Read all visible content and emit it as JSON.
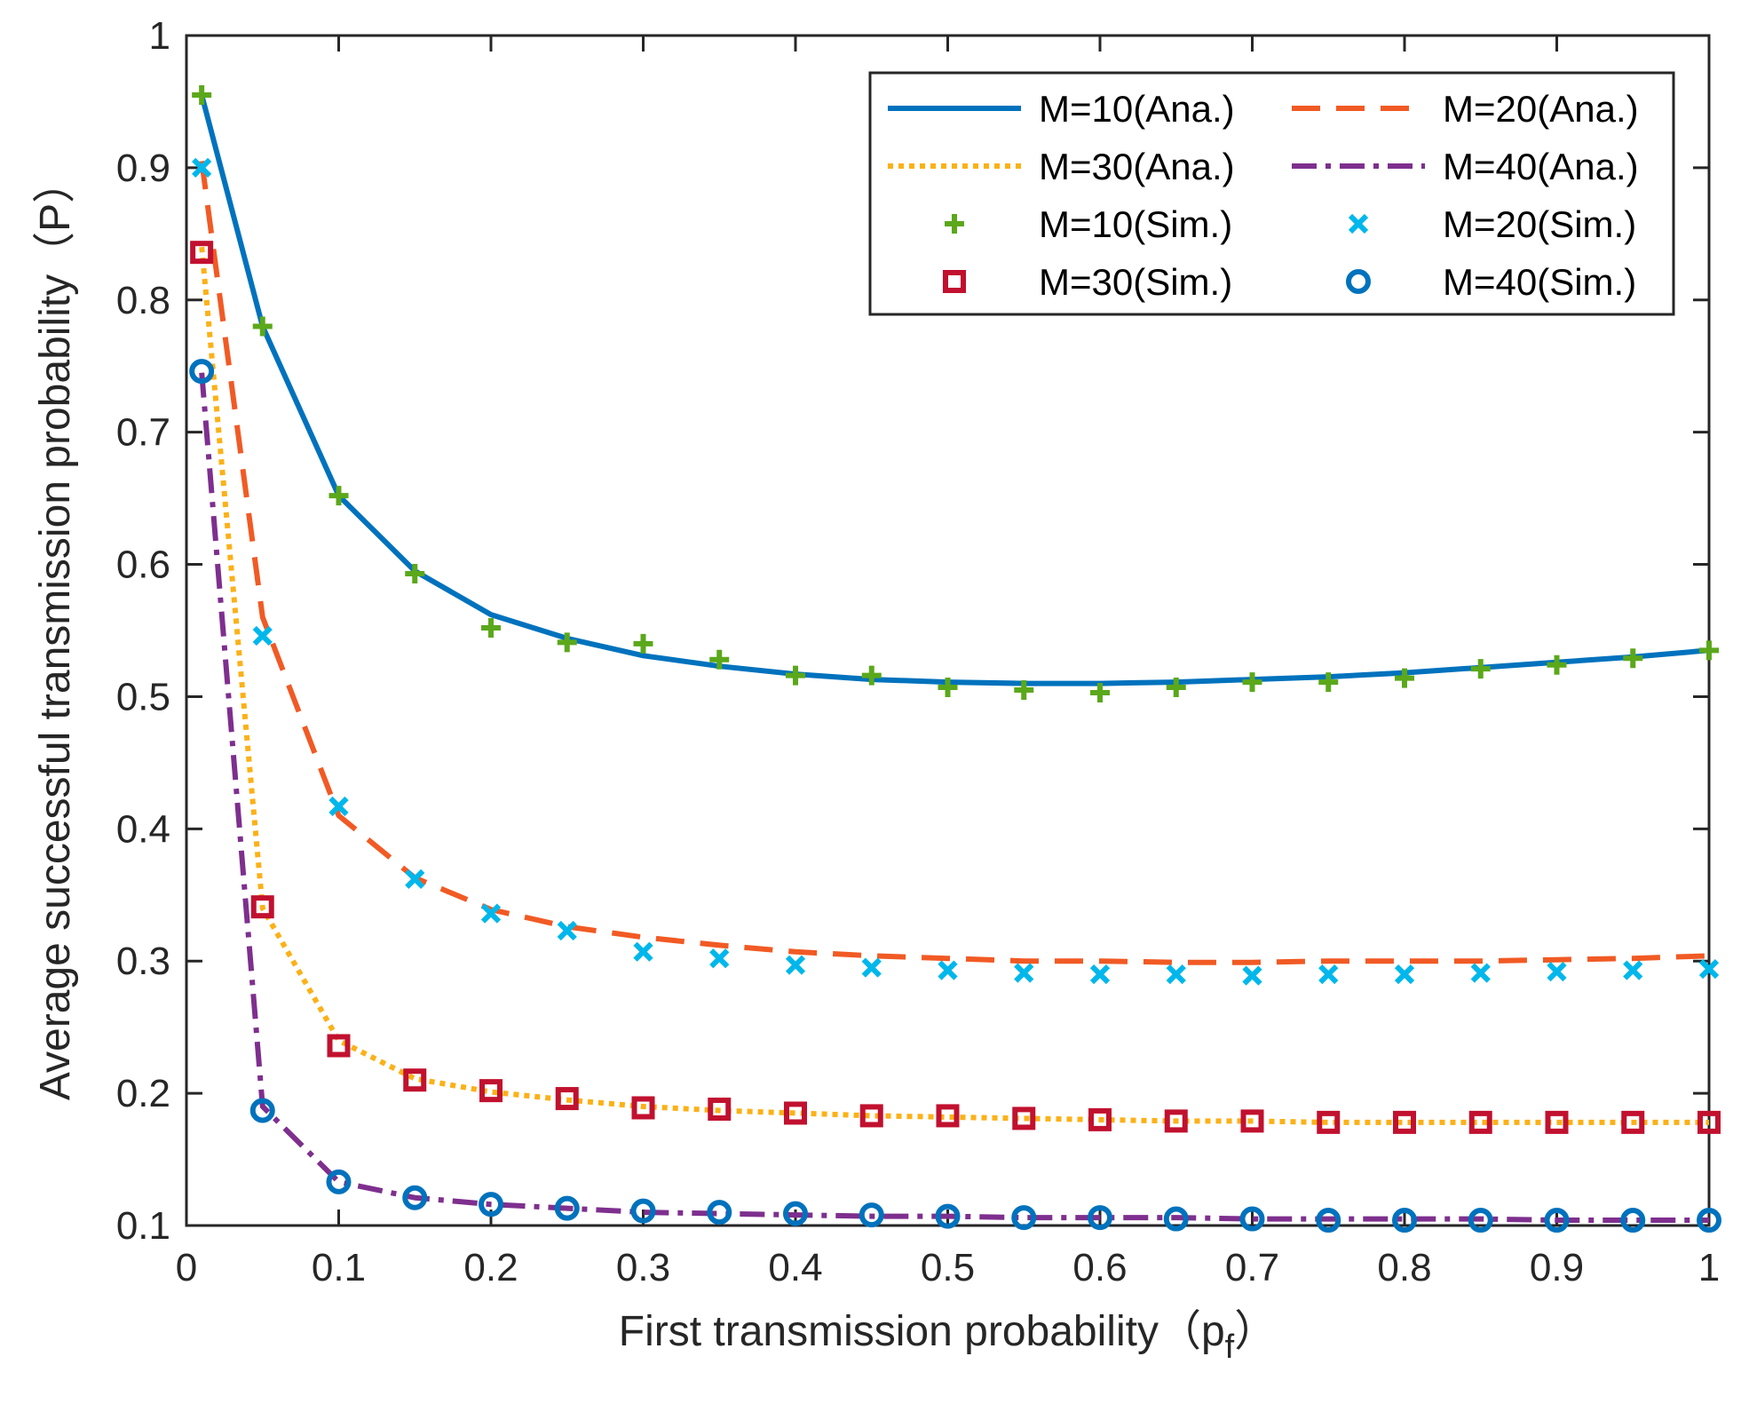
{
  "chart_data": {
    "type": "line",
    "xlabel": "First transmission probability（p_f）",
    "xlabel_parts": {
      "main": "First transmission probability（p",
      "subscript": "f",
      "close": "）"
    },
    "ylabel": "Average successful transmission probability（P）",
    "xlim": [
      0,
      1
    ],
    "ylim": [
      0.1,
      1
    ],
    "xticks": [
      0,
      0.1,
      0.2,
      0.3,
      0.4,
      0.5,
      0.6,
      0.7,
      0.8,
      0.9,
      1
    ],
    "xtick_labels": [
      "0",
      "0.1",
      "0.2",
      "0.3",
      "0.4",
      "0.5",
      "0.6",
      "0.7",
      "0.8",
      "0.9",
      "1"
    ],
    "yticks": [
      0.1,
      0.2,
      0.3,
      0.4,
      0.5,
      0.6,
      0.7,
      0.8,
      0.9,
      1
    ],
    "ytick_labels": [
      "0.1",
      "0.2",
      "0.3",
      "0.4",
      "0.5",
      "0.6",
      "0.7",
      "0.8",
      "0.9",
      "1"
    ],
    "grid": false,
    "legend_position": "top-right",
    "x": [
      0.01,
      0.05,
      0.1,
      0.15,
      0.2,
      0.25,
      0.3,
      0.35,
      0.4,
      0.45,
      0.5,
      0.55,
      0.6,
      0.65,
      0.7,
      0.75,
      0.8,
      0.85,
      0.9,
      0.95,
      1.0
    ],
    "series": [
      {
        "name": "M=10(Ana.)",
        "style": "line",
        "dash": "solid",
        "color": "#0072BD",
        "values": [
          0.955,
          0.78,
          0.652,
          0.595,
          0.562,
          0.544,
          0.531,
          0.523,
          0.517,
          0.513,
          0.511,
          0.51,
          0.51,
          0.511,
          0.513,
          0.515,
          0.518,
          0.522,
          0.526,
          0.53,
          0.535
        ]
      },
      {
        "name": "M=20(Ana.)",
        "style": "line",
        "dash": "dashed",
        "color": "#F15A24",
        "values": [
          0.905,
          0.56,
          0.41,
          0.363,
          0.339,
          0.326,
          0.318,
          0.312,
          0.307,
          0.304,
          0.302,
          0.3,
          0.3,
          0.299,
          0.299,
          0.3,
          0.3,
          0.3,
          0.301,
          0.302,
          0.304
        ]
      },
      {
        "name": "M=30(Ana.)",
        "style": "line",
        "dash": "dotted",
        "color": "#FBB117",
        "values": [
          0.84,
          0.34,
          0.24,
          0.211,
          0.201,
          0.195,
          0.19,
          0.187,
          0.185,
          0.183,
          0.182,
          0.181,
          0.18,
          0.179,
          0.179,
          0.178,
          0.178,
          0.178,
          0.178,
          0.178,
          0.178
        ]
      },
      {
        "name": "M=40(Ana.)",
        "style": "line",
        "dash": "dashdot",
        "color": "#7E2F8E",
        "values": [
          0.745,
          0.19,
          0.133,
          0.121,
          0.116,
          0.113,
          0.11,
          0.109,
          0.108,
          0.107,
          0.107,
          0.106,
          0.106,
          0.106,
          0.105,
          0.105,
          0.105,
          0.105,
          0.104,
          0.104,
          0.104
        ]
      },
      {
        "name": "M=10(Sim.)",
        "style": "marker",
        "marker": "plus",
        "color": "#5BA81B",
        "values": [
          0.955,
          0.78,
          0.652,
          0.593,
          0.552,
          0.541,
          0.54,
          0.528,
          0.516,
          0.516,
          0.507,
          0.505,
          0.503,
          0.507,
          0.511,
          0.511,
          0.514,
          0.521,
          0.524,
          0.529,
          0.535
        ]
      },
      {
        "name": "M=20(Sim.)",
        "style": "marker",
        "marker": "cross",
        "color": "#00B7EB",
        "values": [
          0.9,
          0.546,
          0.417,
          0.362,
          0.336,
          0.323,
          0.307,
          0.302,
          0.297,
          0.295,
          0.293,
          0.291,
          0.29,
          0.29,
          0.289,
          0.29,
          0.29,
          0.291,
          0.292,
          0.293,
          0.294
        ]
      },
      {
        "name": "M=30(Sim.)",
        "style": "marker",
        "marker": "square",
        "color": "#C1112F",
        "values": [
          0.836,
          0.341,
          0.236,
          0.21,
          0.202,
          0.196,
          0.189,
          0.188,
          0.185,
          0.183,
          0.183,
          0.181,
          0.18,
          0.179,
          0.179,
          0.178,
          0.178,
          0.178,
          0.178,
          0.178,
          0.178
        ]
      },
      {
        "name": "M=40(Sim.)",
        "style": "marker",
        "marker": "circle",
        "color": "#0072BD",
        "values": [
          0.746,
          0.187,
          0.133,
          0.121,
          0.116,
          0.113,
          0.111,
          0.11,
          0.109,
          0.108,
          0.107,
          0.106,
          0.106,
          0.105,
          0.105,
          0.104,
          0.104,
          0.104,
          0.104,
          0.104,
          0.104
        ]
      }
    ]
  }
}
